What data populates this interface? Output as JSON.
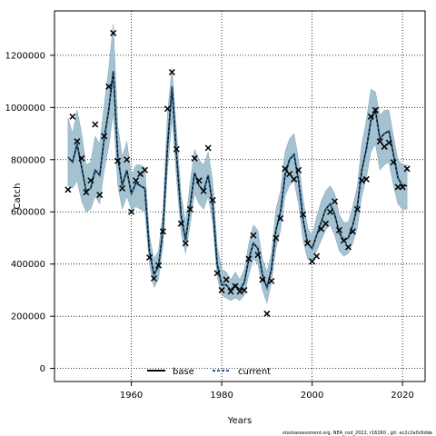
{
  "chart_data": {
    "type": "line",
    "title": "",
    "xlabel": "Years",
    "ylabel": "Catch",
    "xlim": [
      1943,
      2025
    ],
    "ylim": [
      -50000,
      1370000
    ],
    "xticks": [
      1960,
      1980,
      2000,
      2020
    ],
    "yticks": [
      0,
      200000,
      400000,
      600000,
      800000,
      1000000,
      1200000
    ],
    "grid": true,
    "legend": {
      "placement": "bottom-center",
      "entries": [
        "base",
        "current"
      ]
    },
    "colors": {
      "band": "#a0bfcf",
      "base": "#000000",
      "current": "#1f5a8a",
      "observed": "#000000"
    },
    "x": [
      1946,
      1947,
      1948,
      1949,
      1950,
      1951,
      1952,
      1953,
      1954,
      1955,
      1956,
      1957,
      1958,
      1959,
      1960,
      1961,
      1962,
      1963,
      1964,
      1965,
      1966,
      1967,
      1968,
      1969,
      1970,
      1971,
      1972,
      1973,
      1974,
      1975,
      1976,
      1977,
      1978,
      1979,
      1980,
      1981,
      1982,
      1983,
      1984,
      1985,
      1986,
      1987,
      1988,
      1989,
      1990,
      1991,
      1992,
      1993,
      1994,
      1995,
      1996,
      1997,
      1998,
      1999,
      2000,
      2001,
      2002,
      2003,
      2004,
      2005,
      2006,
      2007,
      2008,
      2009,
      2010,
      2011,
      2012,
      2013,
      2014,
      2015,
      2016,
      2017,
      2018,
      2019,
      2020,
      2021
    ],
    "series": [
      {
        "name": "base",
        "values": [
          810000,
          790000,
          860000,
          770000,
          680000,
          690000,
          760000,
          740000,
          880000,
          990000,
          1140000,
          810000,
          700000,
          760000,
          670000,
          710000,
          700000,
          690000,
          450000,
          360000,
          390000,
          530000,
          850000,
          1080000,
          820000,
          590000,
          490000,
          620000,
          750000,
          700000,
          680000,
          740000,
          630000,
          400000,
          320000,
          320000,
          300000,
          320000,
          300000,
          330000,
          420000,
          480000,
          460000,
          360000,
          310000,
          380000,
          530000,
          600000,
          740000,
          800000,
          820000,
          720000,
          570000,
          480000,
          460000,
          510000,
          560000,
          610000,
          630000,
          590000,
          520000,
          490000,
          500000,
          550000,
          620000,
          760000,
          840000,
          950000,
          990000,
          880000,
          900000,
          910000,
          820000,
          730000,
          700000,
          700000
        ]
      },
      {
        "name": "current",
        "values": [
          810000,
          790000,
          860000,
          770000,
          680000,
          690000,
          760000,
          740000,
          880000,
          990000,
          1140000,
          810000,
          700000,
          760000,
          670000,
          710000,
          700000,
          690000,
          450000,
          360000,
          390000,
          530000,
          850000,
          1080000,
          820000,
          590000,
          490000,
          620000,
          750000,
          700000,
          680000,
          740000,
          630000,
          400000,
          320000,
          320000,
          300000,
          320000,
          300000,
          330000,
          420000,
          480000,
          460000,
          360000,
          310000,
          380000,
          530000,
          600000,
          740000,
          800000,
          820000,
          720000,
          570000,
          480000,
          460000,
          510000,
          560000,
          610000,
          630000,
          590000,
          520000,
          490000,
          500000,
          550000,
          620000,
          760000,
          840000,
          950000,
          990000,
          880000,
          900000,
          910000,
          820000,
          730000,
          700000,
          700000
        ]
      },
      {
        "name": "observed",
        "values": [
          685000,
          965000,
          870000,
          805000,
          675000,
          720000,
          935000,
          665000,
          890000,
          1080000,
          1285000,
          795000,
          690000,
          800000,
          600000,
          720000,
          745000,
          760000,
          425000,
          345000,
          395000,
          525000,
          995000,
          1135000,
          840000,
          555000,
          480000,
          610000,
          805000,
          720000,
          680000,
          845000,
          645000,
          365000,
          300000,
          340000,
          295000,
          315000,
          295000,
          300000,
          420000,
          510000,
          435000,
          340000,
          210000,
          335000,
          500000,
          575000,
          765000,
          745000,
          725000,
          760000,
          590000,
          480000,
          410000,
          430000,
          535000,
          555000,
          600000,
          640000,
          530000,
          490000,
          465000,
          525000,
          610000,
          720000,
          725000,
          965000,
          990000,
          870000,
          850000,
          865000,
          790000,
          695000,
          695000,
          765000
        ]
      }
    ],
    "band": {
      "lower": [
        700000,
        690000,
        720000,
        640000,
        600000,
        610000,
        660000,
        630000,
        760000,
        850000,
        980000,
        700000,
        610000,
        660000,
        610000,
        620000,
        610000,
        600000,
        400000,
        310000,
        340000,
        470000,
        760000,
        960000,
        730000,
        520000,
        440000,
        550000,
        670000,
        630000,
        610000,
        660000,
        560000,
        350000,
        280000,
        270000,
        260000,
        270000,
        260000,
        280000,
        360000,
        420000,
        400000,
        300000,
        250000,
        330000,
        460000,
        530000,
        660000,
        700000,
        720000,
        630000,
        490000,
        420000,
        410000,
        450000,
        490000,
        530000,
        550000,
        510000,
        450000,
        430000,
        440000,
        480000,
        540000,
        660000,
        730000,
        830000,
        860000,
        760000,
        780000,
        790000,
        700000,
        630000,
        610000,
        610000
      ],
      "upper": [
        960000,
        900000,
        990000,
        900000,
        780000,
        790000,
        890000,
        860000,
        1010000,
        1150000,
        1320000,
        930000,
        810000,
        870000,
        740000,
        780000,
        780000,
        770000,
        510000,
        420000,
        450000,
        600000,
        980000,
        1150000,
        910000,
        670000,
        560000,
        710000,
        840000,
        800000,
        780000,
        830000,
        720000,
        470000,
        380000,
        370000,
        340000,
        370000,
        340000,
        380000,
        480000,
        550000,
        530000,
        420000,
        370000,
        440000,
        610000,
        680000,
        830000,
        880000,
        900000,
        800000,
        650000,
        540000,
        510000,
        580000,
        640000,
        680000,
        700000,
        670000,
        590000,
        560000,
        560000,
        620000,
        700000,
        860000,
        950000,
        1070000,
        1060000,
        970000,
        990000,
        990000,
        890000,
        800000,
        780000,
        780000
      ]
    }
  },
  "footer_text": "stockassessment.org,  NEA_cod_2022,  r16260 ,  git:  ec2c2a0c6dde"
}
